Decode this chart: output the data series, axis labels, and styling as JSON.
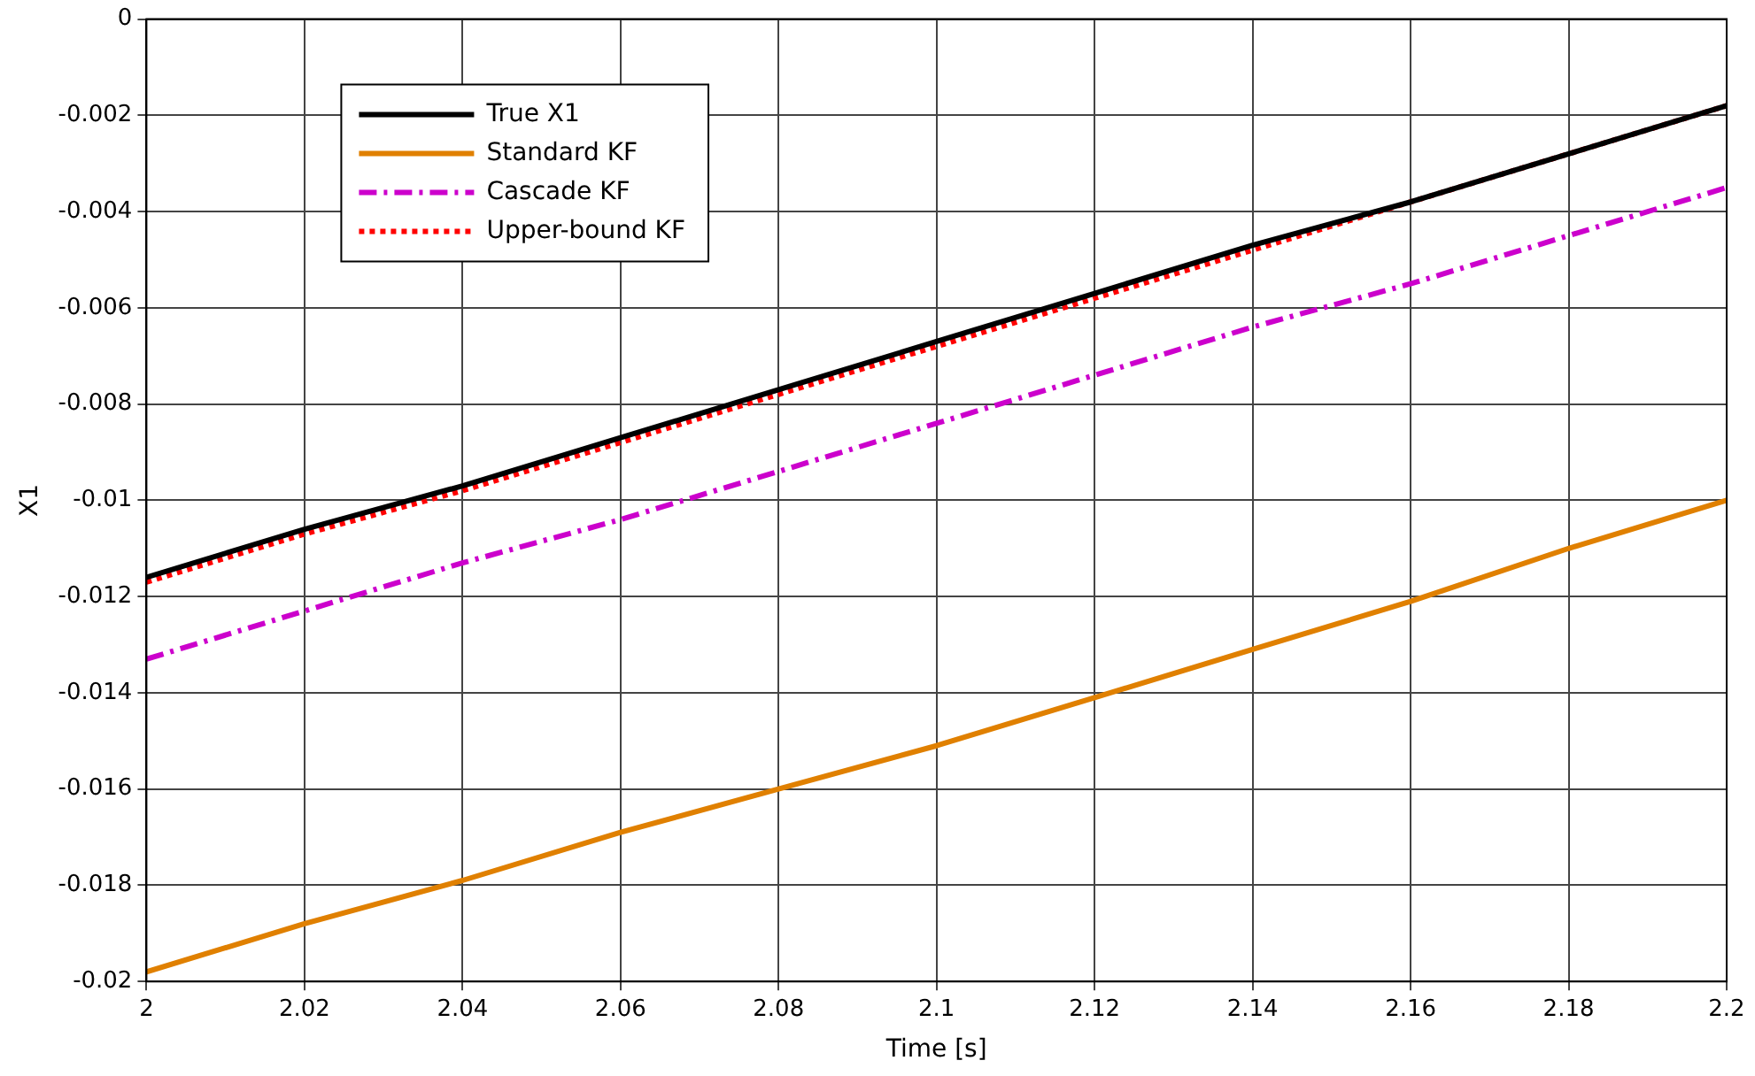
{
  "chart_data": {
    "type": "line",
    "xlabel": "Time [s]",
    "ylabel": "X1",
    "x": [
      2,
      2.02,
      2.04,
      2.06,
      2.08,
      2.1,
      2.12,
      2.14,
      2.16,
      2.18,
      2.2
    ],
    "series": [
      {
        "name": "True X1",
        "color": "#000000",
        "line_style": "solid",
        "values": [
          -0.0116,
          -0.0106,
          -0.0097,
          -0.0087,
          -0.0077,
          -0.0067,
          -0.0057,
          -0.0047,
          -0.0038,
          -0.0028,
          -0.0018
        ]
      },
      {
        "name": "Standard KF",
        "color": "#e08000",
        "line_style": "solid",
        "values": [
          -0.0198,
          -0.0188,
          -0.0179,
          -0.0169,
          -0.016,
          -0.0151,
          -0.0141,
          -0.0131,
          -0.0121,
          -0.011,
          -0.01
        ]
      },
      {
        "name": "Cascade KF",
        "color": "#cc00cc",
        "line_style": "dashdot",
        "values": [
          -0.0133,
          -0.0123,
          -0.0113,
          -0.0104,
          -0.0094,
          -0.0084,
          -0.0074,
          -0.0064,
          -0.0055,
          -0.0045,
          -0.0035
        ]
      },
      {
        "name": "Upper-bound KF",
        "color": "#ff0000",
        "line_style": "dotted",
        "values": [
          -0.0117,
          -0.0107,
          -0.0098,
          -0.0088,
          -0.0078,
          -0.0068,
          -0.0058,
          -0.0048,
          -0.0038,
          -0.0028,
          -0.0018
        ]
      }
    ],
    "xlim": [
      2,
      2.2
    ],
    "xticks": [
      2,
      2.02,
      2.04,
      2.06,
      2.08,
      2.1,
      2.12,
      2.14,
      2.16,
      2.18,
      2.2
    ],
    "ylim": [
      -0.02,
      0
    ],
    "yticks": [
      -0.02,
      -0.018,
      -0.016,
      -0.014,
      -0.012,
      -0.01,
      -0.008,
      -0.006,
      -0.004,
      -0.002,
      0
    ],
    "grid": true,
    "legend": "top left",
    "marker": "none"
  }
}
